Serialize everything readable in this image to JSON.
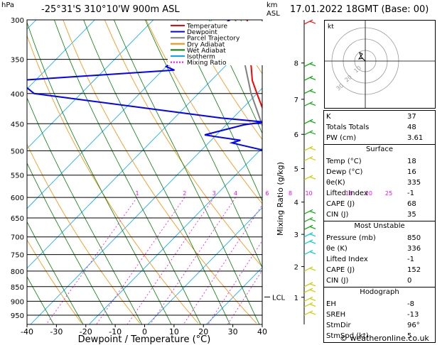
{
  "header": {
    "pressure_unit": "hPa",
    "location": "-25°31'S 310°10'W 900m ASL",
    "height_unit_km": "km",
    "height_unit_asl": "ASL",
    "datetime": "17.01.2022 18GMT (Base: 00)"
  },
  "chart_data": {
    "type": "line",
    "subtype": "skew-T log-P diagram",
    "xlabel": "Dewpoint / Temperature (°C)",
    "ylabel_right": "Mixing Ratio (g/kg)",
    "x_ticks": [
      -40,
      -30,
      -20,
      -10,
      0,
      10,
      20,
      30,
      40
    ],
    "pressure_ticks": [
      300,
      350,
      400,
      450,
      500,
      550,
      600,
      650,
      700,
      750,
      800,
      850,
      900,
      950
    ],
    "km_ticks": [
      {
        "label": "8",
        "p": 355
      },
      {
        "label": "7",
        "p": 409
      },
      {
        "label": "6",
        "p": 469
      },
      {
        "label": "5",
        "p": 536
      },
      {
        "label": "4",
        "p": 611
      },
      {
        "label": "3",
        "p": 693
      },
      {
        "label": "2",
        "p": 786
      },
      {
        "label": "1",
        "p": 886
      }
    ],
    "mixing_ratio_labels": [
      "1",
      "2",
      "3",
      "4",
      "6",
      "8",
      "10",
      "16",
      "20",
      "25"
    ],
    "lcl_label": "LCL",
    "lcl_pressure": 885,
    "legend": [
      "Temperature",
      "Dewpoint",
      "Parcel Trajectory",
      "Dry Adiabat",
      "Wet Adiabat",
      "Isotherm",
      "Mixing Ratio"
    ],
    "colors": {
      "temperature": "#ff0000",
      "dewpoint": "#0000ff",
      "parcel": "#808080",
      "dry_adiabat": "#ff8c00",
      "wet_adiabat": "#008000",
      "isotherm": "#00aaff",
      "mixing_ratio": "#ff00ff"
    },
    "series": [
      {
        "name": "Temperature",
        "points": [
          [
            300,
            -34
          ],
          [
            350,
            -27
          ],
          [
            360,
            -25.5
          ],
          [
            380,
            -23
          ],
          [
            400,
            -20
          ],
          [
            450,
            -13
          ],
          [
            500,
            -7
          ],
          [
            510,
            -6
          ],
          [
            550,
            -3
          ],
          [
            600,
            1
          ],
          [
            650,
            4.5
          ],
          [
            700,
            7.5
          ],
          [
            750,
            11
          ],
          [
            800,
            14
          ],
          [
            850,
            16
          ],
          [
            900,
            18
          ]
        ]
      },
      {
        "name": "Dewpoint",
        "points": [
          [
            300,
            -37
          ],
          [
            320,
            -38
          ],
          [
            360,
            -40
          ],
          [
            365,
            -38
          ],
          [
            380,
            -63
          ],
          [
            400,
            -58
          ],
          [
            440,
            -22
          ],
          [
            447,
            -14
          ],
          [
            452,
            -17
          ],
          [
            470,
            -22
          ],
          [
            473,
            -20
          ],
          [
            480,
            -15
          ],
          [
            485,
            -16
          ],
          [
            500,
            -9
          ],
          [
            505,
            -7.5
          ],
          [
            515,
            -6
          ],
          [
            550,
            -3.5
          ],
          [
            600,
            -0.5
          ],
          [
            650,
            3
          ],
          [
            700,
            6
          ],
          [
            750,
            9.5
          ],
          [
            800,
            12.5
          ],
          [
            850,
            14.5
          ],
          [
            900,
            16
          ]
        ]
      },
      {
        "name": "Parcel Trajectory",
        "points": [
          [
            300,
            -36
          ],
          [
            400,
            -21
          ],
          [
            500,
            -8
          ],
          [
            600,
            0.5
          ],
          [
            700,
            7
          ],
          [
            800,
            13
          ],
          [
            885,
            16.5
          ],
          [
            900,
            17.5
          ]
        ]
      }
    ]
  },
  "hodograph": {
    "label": "kt",
    "ring_labels": [
      "10",
      "20",
      "30"
    ]
  },
  "indices": {
    "top": [
      {
        "label": "K",
        "value": "37"
      },
      {
        "label": "Totals Totals",
        "value": "48"
      },
      {
        "label": "PW (cm)",
        "value": "3.61"
      }
    ],
    "surface": {
      "title": "Surface",
      "rows": [
        {
          "label": "Temp (°C)",
          "value": "18"
        },
        {
          "label": "Dewp (°C)",
          "value": "16"
        },
        {
          "label": "θe(K)",
          "value": "335"
        },
        {
          "label": "Lifted Index",
          "value": "-1"
        },
        {
          "label": "CAPE (J)",
          "value": "68"
        },
        {
          "label": "CIN (J)",
          "value": "35"
        }
      ]
    },
    "most_unstable": {
      "title": "Most Unstable",
      "rows": [
        {
          "label": "Pressure (mb)",
          "value": "850"
        },
        {
          "label": "θe (K)",
          "value": "336"
        },
        {
          "label": "Lifted Index",
          "value": "-1"
        },
        {
          "label": "CAPE (J)",
          "value": "152"
        },
        {
          "label": "CIN (J)",
          "value": "0"
        }
      ]
    },
    "hodograph_box": {
      "title": "Hodograph",
      "rows": [
        {
          "label": "EH",
          "value": "-8"
        },
        {
          "label": "SREH",
          "value": "-13"
        },
        {
          "label": "StmDir",
          "value": "96°"
        },
        {
          "label": "StmSpd (kt)",
          "value": "5"
        }
      ]
    }
  },
  "footer": {
    "copyright": "© weatheronline.co.uk"
  }
}
